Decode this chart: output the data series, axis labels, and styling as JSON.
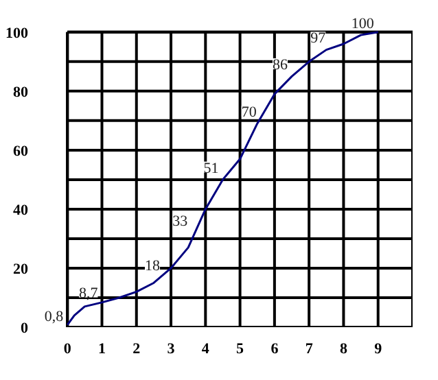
{
  "chart_data": {
    "type": "line",
    "xlim": [
      0,
      10
    ],
    "ylim": [
      0,
      100
    ],
    "xticks": [
      0,
      1,
      2,
      3,
      4,
      5,
      6,
      7,
      8,
      9
    ],
    "yticks": [
      0,
      {
        "value": 10,
        "label": null
      },
      20,
      {
        "value": 30,
        "label": null
      },
      40,
      {
        "value": 50,
        "label": null
      },
      60,
      {
        "value": 70,
        "label": null
      },
      80,
      {
        "value": 90,
        "label": null
      },
      100
    ],
    "grid": true,
    "marker": "none",
    "line_style": "solid",
    "series": [
      {
        "color": "#000080",
        "x": [
          0,
          0.2,
          0.5,
          1,
          1.5,
          2,
          2.5,
          3,
          3.5,
          4,
          4.5,
          5,
          5.5,
          6,
          6.5,
          7,
          7.5,
          8,
          8.5,
          9
        ],
        "values": [
          0.8,
          4,
          7,
          8.4,
          10,
          12,
          15,
          20,
          27,
          40,
          50,
          57,
          69,
          79,
          85,
          90,
          94,
          96,
          99,
          100
        ]
      }
    ],
    "annotations": [
      {
        "text": "0,8",
        "x": 0,
        "y": 0.8
      },
      {
        "text": "8,7",
        "x": 1,
        "y": 8.7
      },
      {
        "text": "18",
        "x": 2.8,
        "y": 18
      },
      {
        "text": "33",
        "x": 3.6,
        "y": 33
      },
      {
        "text": "51",
        "x": 4.5,
        "y": 51
      },
      {
        "text": "70",
        "x": 5.6,
        "y": 70
      },
      {
        "text": "86",
        "x": 6.5,
        "y": 86
      },
      {
        "text": "97",
        "x": 7.6,
        "y": 95
      },
      {
        "text": "100",
        "x": 9,
        "y": 100
      }
    ]
  }
}
